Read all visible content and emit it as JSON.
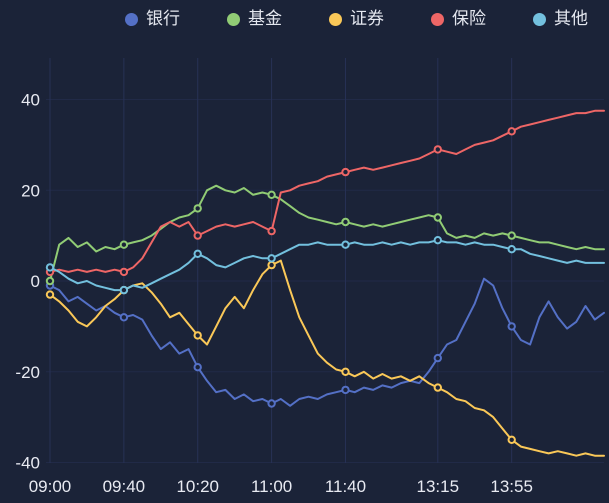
{
  "chart_data": {
    "type": "line",
    "title": "",
    "background_color": "#1b2338",
    "legend_position": "top",
    "grid": "faint vertical lines at time ticks, faint horizontal lines at y ticks",
    "x_labels": [
      "09:00",
      "09:40",
      "10:20",
      "11:00",
      "11:40",
      "13:15",
      "13:55"
    ],
    "x_tick_indices": [
      0,
      8,
      16,
      24,
      32,
      42,
      50
    ],
    "x_count": 61,
    "ylim": [
      -40,
      40
    ],
    "y_ticks": [
      40,
      20,
      0,
      -20,
      -40
    ],
    "marker_indices": [
      0,
      8,
      16,
      24,
      32,
      42,
      50
    ],
    "series": [
      {
        "key": "bank",
        "name": "银行",
        "color": "#5470c6",
        "values": [
          -1,
          -2,
          -4.5,
          -3.5,
          -5,
          -6.5,
          -5.5,
          -7,
          -8,
          -7.5,
          -8.5,
          -12,
          -15,
          -13.5,
          -16,
          -15,
          -19,
          -22,
          -24.5,
          -24,
          -26,
          -25,
          -26.5,
          -26,
          -27,
          -26,
          -27.5,
          -26,
          -25.5,
          -26,
          -25,
          -24.5,
          -24,
          -24.5,
          -23.5,
          -24,
          -23,
          -23.5,
          -22.5,
          -22,
          -22.5,
          -20,
          -17,
          -14,
          -13,
          -9,
          -5,
          0.5,
          -1,
          -6,
          -10,
          -13,
          -14,
          -8,
          -4.5,
          -8,
          -10.5,
          -9,
          -5.5,
          -8.5,
          -7
        ]
      },
      {
        "key": "fund",
        "name": "基金",
        "color": "#91cc75",
        "values": [
          0,
          8,
          9.5,
          7.5,
          8.5,
          6.5,
          7.5,
          7,
          8,
          8.5,
          9,
          10,
          11.5,
          13,
          14,
          14.5,
          16,
          20,
          21,
          20,
          19.5,
          20.5,
          19,
          19.5,
          19,
          18,
          16.5,
          15,
          14,
          13.5,
          13,
          12.5,
          13,
          12.5,
          12,
          12.5,
          12,
          12.5,
          13,
          13.5,
          14,
          14.5,
          14,
          10.5,
          9.5,
          10,
          9.5,
          10.5,
          10,
          10.5,
          10,
          9.5,
          9,
          8.5,
          8.5,
          8,
          7.5,
          7,
          7.5,
          7,
          7
        ]
      },
      {
        "key": "securities",
        "name": "证券",
        "color": "#fac858",
        "values": [
          -3,
          -4.5,
          -6.5,
          -9,
          -10,
          -8,
          -5.5,
          -4,
          -2,
          -1,
          -0.5,
          -2.5,
          -5,
          -8,
          -7,
          -9.5,
          -12,
          -14,
          -10,
          -6,
          -3.5,
          -6,
          -2,
          1.5,
          3.5,
          4.5,
          -2,
          -8,
          -12,
          -16,
          -18,
          -19.5,
          -20,
          -21,
          -20,
          -21.5,
          -20.5,
          -21.5,
          -21,
          -22,
          -21,
          -22.5,
          -23.5,
          -24.5,
          -26,
          -26.5,
          -28,
          -28.5,
          -30,
          -32.5,
          -35,
          -36.5,
          -37,
          -37.5,
          -38,
          -37.5,
          -38,
          -38.5,
          -38,
          -38.5,
          -38.5
        ]
      },
      {
        "key": "insurance",
        "name": "保险",
        "color": "#ee6666",
        "values": [
          2,
          2.5,
          2,
          2.5,
          2,
          2.5,
          2,
          2.5,
          2,
          3,
          5,
          8.5,
          12,
          13,
          12,
          13,
          10,
          11,
          12,
          12.5,
          12,
          12.5,
          13,
          12,
          11,
          19.5,
          20,
          21,
          21.5,
          22,
          23,
          23.5,
          24,
          24.5,
          25,
          24.5,
          25,
          25.5,
          26,
          26.5,
          27,
          28,
          29,
          28.5,
          28,
          29,
          30,
          30.5,
          31,
          32,
          33,
          34,
          34.5,
          35,
          35.5,
          36,
          36.5,
          37,
          37,
          37.5,
          37.5
        ]
      },
      {
        "key": "other",
        "name": "其他",
        "color": "#73c0de",
        "values": [
          3,
          2,
          0.5,
          -0.5,
          0,
          -1,
          -1.5,
          -2,
          -2,
          -1,
          -1.5,
          -0.5,
          0.5,
          1.5,
          2.5,
          4,
          6,
          5,
          3.5,
          3,
          4,
          5,
          5.5,
          5,
          5,
          6,
          7,
          8,
          8,
          8.5,
          8,
          8,
          8,
          8.5,
          8,
          8,
          8.5,
          8,
          8.5,
          8,
          8.5,
          8.5,
          9,
          8.5,
          8.5,
          8,
          8.5,
          8,
          8,
          7.5,
          7,
          7,
          6,
          5.5,
          5,
          4.5,
          4,
          4.5,
          4,
          4,
          4
        ]
      }
    ]
  },
  "colors": {
    "background": "#1b2338",
    "grid_vertical": "#273155",
    "grid_horizontal": "#212a47",
    "axis_text": "#e8eaf2",
    "legend_text": "#e4e7ef"
  }
}
